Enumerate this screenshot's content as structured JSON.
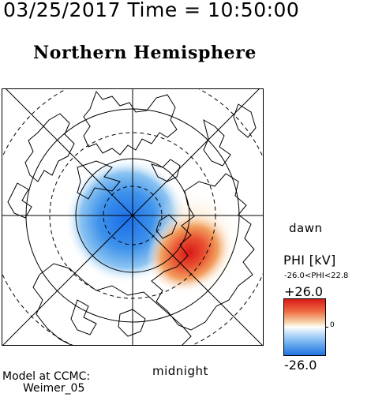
{
  "header": {
    "title": "03/25/2017 Time = 10:50:00"
  },
  "plot": {
    "title": "Northern Hemisphere",
    "dawn_label": "dawn",
    "midnight_label": "midnight"
  },
  "colorbar": {
    "title": "PHI [kV]",
    "range_text": "-26.0<PHI<22.8",
    "max_label": "+26.0",
    "min_label": "-26.0",
    "zero_label": "0",
    "colors": [
      "#1e6fe0",
      "#7fb8f0",
      "#ffffff",
      "#f0b070",
      "#d81818"
    ]
  },
  "credit": {
    "line1": "Model at CCMC:",
    "line2": "Weimer_05"
  }
}
